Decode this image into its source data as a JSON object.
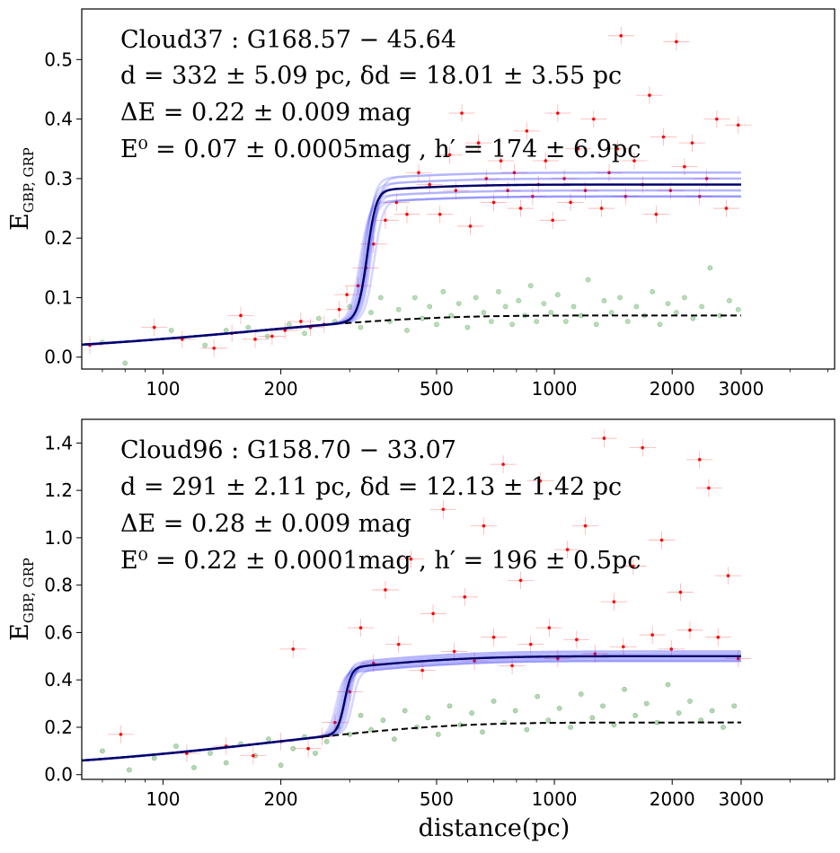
{
  "chart_data": [
    {
      "type": "scatter",
      "x_scale": "log",
      "xlim": [
        62,
        5200
      ],
      "ylim": [
        -0.02,
        0.585
      ],
      "x_ticks": [
        100,
        200,
        500,
        1000,
        2000,
        3000
      ],
      "x_tick_labels": [
        "100",
        "200",
        "500",
        "1000",
        "2000",
        "3000"
      ],
      "y_ticks": [
        0.0,
        0.1,
        0.2,
        0.3,
        0.4,
        0.5
      ],
      "y_tick_labels": [
        "0.0",
        "0.1",
        "0.2",
        "0.3",
        "0.4",
        "0.5"
      ],
      "ylabel": "E_{G_BP, G_RP}",
      "xlabel": "",
      "annotations": [
        "Cloud37 : G168.57 − 45.64",
        "d = 332 ± 5.09 pc, δd = 18.01 ± 3.55 pc",
        "ΔE = 0.22 ± 0.009 mag",
        "E⁰ = 0.07 ± 0.0005mag , h′ = 174 ± 6.9pc"
      ],
      "model": {
        "d": 332,
        "width": 18.01,
        "delta_e": 0.22,
        "e0": 0.07,
        "h": 174,
        "x_end": 3000
      },
      "background_model": {
        "e0": 0.07,
        "h": 174
      },
      "series": [
        {
          "name": "",
          "color": "#ff0000",
          "points": [
            [
              65,
              0.02
            ],
            [
              95,
              0.05
            ],
            [
              112,
              0.03
            ],
            [
              135,
              0.015
            ],
            [
              150,
              0.04
            ],
            [
              158,
              0.07
            ],
            [
              172,
              0.03
            ],
            [
              190,
              0.035
            ],
            [
              205,
              0.045
            ],
            [
              225,
              0.06
            ],
            [
              238,
              0.05
            ],
            [
              258,
              0.055
            ],
            [
              282,
              0.08
            ],
            [
              295,
              0.105
            ],
            [
              315,
              0.12
            ],
            [
              330,
              0.15
            ],
            [
              345,
              0.19
            ],
            [
              370,
              0.23
            ],
            [
              395,
              0.26
            ],
            [
              420,
              0.24
            ],
            [
              450,
              0.31
            ],
            [
              480,
              0.29
            ],
            [
              510,
              0.24
            ],
            [
              540,
              0.34
            ],
            [
              560,
              0.28
            ],
            [
              580,
              0.41
            ],
            [
              610,
              0.22
            ],
            [
              640,
              0.36
            ],
            [
              670,
              0.3
            ],
            [
              700,
              0.26
            ],
            [
              730,
              0.33
            ],
            [
              760,
              0.28
            ],
            [
              790,
              0.31
            ],
            [
              820,
              0.25
            ],
            [
              850,
              0.38
            ],
            [
              880,
              0.27
            ],
            [
              910,
              0.29
            ],
            [
              950,
              0.33
            ],
            [
              990,
              0.23
            ],
            [
              1020,
              0.41
            ],
            [
              1060,
              0.3
            ],
            [
              1100,
              0.26
            ],
            [
              1150,
              0.35
            ],
            [
              1200,
              0.28
            ],
            [
              1260,
              0.4
            ],
            [
              1320,
              0.25
            ],
            [
              1380,
              0.31
            ],
            [
              1450,
              0.35
            ],
            [
              1480,
              0.54
            ],
            [
              1520,
              0.27
            ],
            [
              1600,
              0.33
            ],
            [
              1680,
              0.29
            ],
            [
              1750,
              0.44
            ],
            [
              1820,
              0.24
            ],
            [
              1900,
              0.37
            ],
            [
              1980,
              0.28
            ],
            [
              2050,
              0.53
            ],
            [
              2150,
              0.32
            ],
            [
              2250,
              0.36
            ],
            [
              2350,
              0.27
            ],
            [
              2450,
              0.3
            ],
            [
              2600,
              0.4
            ],
            [
              2750,
              0.25
            ],
            [
              2950,
              0.39
            ]
          ]
        },
        {
          "name": "",
          "color": "#3a9a3a",
          "points": [
            [
              70,
              0.025
            ],
            [
              80,
              -0.01
            ],
            [
              105,
              0.045
            ],
            [
              128,
              0.02
            ],
            [
              145,
              0.045
            ],
            [
              165,
              0.05
            ],
            [
              185,
              0.035
            ],
            [
              210,
              0.055
            ],
            [
              230,
              0.04
            ],
            [
              250,
              0.065
            ],
            [
              275,
              0.06
            ],
            [
              300,
              0.085
            ],
            [
              320,
              0.05
            ],
            [
              340,
              0.075
            ],
            [
              360,
              0.1
            ],
            [
              380,
              0.06
            ],
            [
              400,
              0.08
            ],
            [
              420,
              0.045
            ],
            [
              440,
              0.1
            ],
            [
              460,
              0.065
            ],
            [
              480,
              0.085
            ],
            [
              500,
              0.055
            ],
            [
              520,
              0.11
            ],
            [
              545,
              0.07
            ],
            [
              570,
              0.09
            ],
            [
              600,
              0.05
            ],
            [
              630,
              0.1
            ],
            [
              660,
              0.075
            ],
            [
              690,
              0.06
            ],
            [
              720,
              0.11
            ],
            [
              750,
              0.085
            ],
            [
              780,
              0.055
            ],
            [
              810,
              0.095
            ],
            [
              840,
              0.07
            ],
            [
              870,
              0.12
            ],
            [
              900,
              0.06
            ],
            [
              940,
              0.09
            ],
            [
              980,
              0.075
            ],
            [
              1020,
              0.105
            ],
            [
              1070,
              0.06
            ],
            [
              1120,
              0.085
            ],
            [
              1170,
              0.07
            ],
            [
              1220,
              0.13
            ],
            [
              1280,
              0.055
            ],
            [
              1340,
              0.095
            ],
            [
              1400,
              0.075
            ],
            [
              1470,
              0.1
            ],
            [
              1540,
              0.06
            ],
            [
              1620,
              0.085
            ],
            [
              1700,
              0.07
            ],
            [
              1780,
              0.11
            ],
            [
              1860,
              0.055
            ],
            [
              1950,
              0.09
            ],
            [
              2050,
              0.075
            ],
            [
              2150,
              0.1
            ],
            [
              2260,
              0.065
            ],
            [
              2380,
              0.085
            ],
            [
              2500,
              0.15
            ],
            [
              2650,
              0.07
            ],
            [
              2800,
              0.095
            ],
            [
              2950,
              0.08
            ]
          ]
        }
      ]
    },
    {
      "type": "scatter",
      "x_scale": "log",
      "xlim": [
        62,
        5200
      ],
      "ylim": [
        -0.02,
        1.5
      ],
      "x_ticks": [
        100,
        200,
        500,
        1000,
        2000,
        3000
      ],
      "x_tick_labels": [
        "100",
        "200",
        "500",
        "1000",
        "2000",
        "3000"
      ],
      "y_ticks": [
        0.0,
        0.2,
        0.4,
        0.6,
        0.8,
        1.0,
        1.2,
        1.4
      ],
      "y_tick_labels": [
        "0.0",
        "0.2",
        "0.4",
        "0.6",
        "0.8",
        "1.0",
        "1.2",
        "1.4"
      ],
      "ylabel": "E_{G_BP, G_RP}",
      "xlabel": "distance(pc)",
      "annotations": [
        "Cloud96 : G158.70 − 33.07",
        "d = 291 ± 2.11 pc, δd = 12.13 ± 1.42 pc",
        "ΔE = 0.28 ± 0.009 mag",
        "E⁰ = 0.22 ± 0.0001mag , h′ = 196 ± 0.5pc"
      ],
      "model": {
        "d": 291,
        "width": 12.13,
        "delta_e": 0.28,
        "e0": 0.22,
        "h": 196,
        "x_end": 3000
      },
      "background_model": {
        "e0": 0.22,
        "h": 196
      },
      "series": [
        {
          "name": "",
          "color": "#ff0000",
          "points": [
            [
              78,
              0.17
            ],
            [
              115,
              0.09
            ],
            [
              145,
              0.12
            ],
            [
              170,
              0.08
            ],
            [
              200,
              0.14
            ],
            [
              215,
              0.53
            ],
            [
              235,
              0.11
            ],
            [
              255,
              0.16
            ],
            [
              275,
              0.22
            ],
            [
              300,
              0.35
            ],
            [
              320,
              0.62
            ],
            [
              345,
              0.47
            ],
            [
              370,
              0.78
            ],
            [
              400,
              0.55
            ],
            [
              430,
              0.91
            ],
            [
              460,
              0.44
            ],
            [
              490,
              0.68
            ],
            [
              520,
              1.12
            ],
            [
              555,
              0.52
            ],
            [
              590,
              0.75
            ],
            [
              625,
              0.48
            ],
            [
              660,
              1.05
            ],
            [
              700,
              0.58
            ],
            [
              740,
              1.31
            ],
            [
              780,
              0.46
            ],
            [
              820,
              0.82
            ],
            [
              870,
              0.55
            ],
            [
              920,
              1.24
            ],
            [
              970,
              0.62
            ],
            [
              1020,
              0.49
            ],
            [
              1080,
              0.95
            ],
            [
              1140,
              0.57
            ],
            [
              1200,
              1.05
            ],
            [
              1270,
              0.51
            ],
            [
              1340,
              1.42
            ],
            [
              1420,
              0.73
            ],
            [
              1500,
              0.54
            ],
            [
              1590,
              0.88
            ],
            [
              1680,
              1.38
            ],
            [
              1780,
              0.59
            ],
            [
              1880,
              0.99
            ],
            [
              1990,
              0.53
            ],
            [
              2100,
              0.77
            ],
            [
              2220,
              0.61
            ],
            [
              2350,
              1.33
            ],
            [
              2480,
              1.21
            ],
            [
              2620,
              0.58
            ],
            [
              2780,
              0.84
            ],
            [
              2950,
              0.49
            ]
          ]
        },
        {
          "name": "",
          "color": "#2e8b2e",
          "points": [
            [
              70,
              0.1
            ],
            [
              82,
              0.02
            ],
            [
              95,
              0.07
            ],
            [
              108,
              0.12
            ],
            [
              120,
              0.03
            ],
            [
              132,
              0.09
            ],
            [
              145,
              0.05
            ],
            [
              158,
              0.13
            ],
            [
              172,
              0.08
            ],
            [
              186,
              0.15
            ],
            [
              200,
              0.04
            ],
            [
              215,
              0.11
            ],
            [
              230,
              0.16
            ],
            [
              245,
              0.09
            ],
            [
              262,
              0.14
            ],
            [
              280,
              0.2
            ],
            [
              300,
              0.17
            ],
            [
              320,
              0.25
            ],
            [
              340,
              0.19
            ],
            [
              365,
              0.23
            ],
            [
              390,
              0.15
            ],
            [
              415,
              0.27
            ],
            [
              445,
              0.2
            ],
            [
              475,
              0.24
            ],
            [
              505,
              0.17
            ],
            [
              540,
              0.29
            ],
            [
              575,
              0.21
            ],
            [
              615,
              0.26
            ],
            [
              655,
              0.18
            ],
            [
              700,
              0.31
            ],
            [
              745,
              0.22
            ],
            [
              795,
              0.27
            ],
            [
              850,
              0.19
            ],
            [
              905,
              0.33
            ],
            [
              965,
              0.23
            ],
            [
              1030,
              0.28
            ],
            [
              1100,
              0.2
            ],
            [
              1170,
              0.34
            ],
            [
              1250,
              0.24
            ],
            [
              1330,
              0.29
            ],
            [
              1420,
              0.21
            ],
            [
              1510,
              0.36
            ],
            [
              1610,
              0.25
            ],
            [
              1720,
              0.3
            ],
            [
              1830,
              0.22
            ],
            [
              1950,
              0.38
            ],
            [
              2080,
              0.26
            ],
            [
              2220,
              0.31
            ],
            [
              2370,
              0.23
            ],
            [
              2530,
              0.27
            ],
            [
              2700,
              0.2
            ],
            [
              2880,
              0.29
            ]
          ]
        }
      ]
    }
  ]
}
